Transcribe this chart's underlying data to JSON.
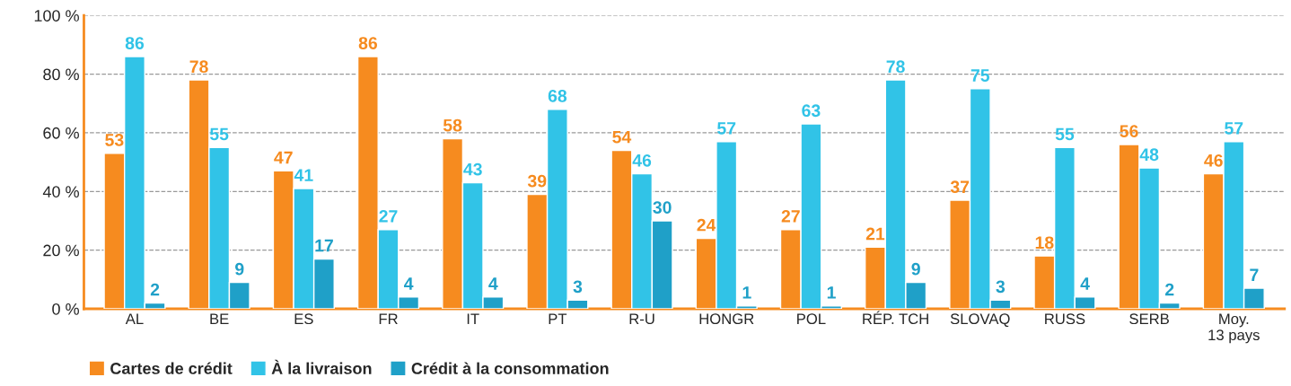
{
  "chart_data": {
    "type": "bar",
    "categories": [
      "AL",
      "BE",
      "ES",
      "FR",
      "IT",
      "PT",
      "R-U",
      "HONGR",
      "POL",
      "RÉP. TCH",
      "SLOVAQ",
      "RUSS",
      "SERB",
      "Moy.\n13 pays"
    ],
    "series": [
      {
        "name": "Cartes de crédit",
        "color": "#f68b1f",
        "values": [
          53,
          78,
          47,
          86,
          58,
          39,
          54,
          24,
          27,
          21,
          37,
          18,
          56,
          46
        ]
      },
      {
        "name": "À la livraison",
        "color": "#31c3e7",
        "values": [
          86,
          55,
          41,
          27,
          43,
          68,
          46,
          57,
          63,
          78,
          75,
          55,
          48,
          57
        ]
      },
      {
        "name": "Crédit à la consommation",
        "color": "#1fa0c8",
        "values": [
          2,
          9,
          17,
          4,
          4,
          3,
          30,
          1,
          1,
          9,
          3,
          4,
          2,
          7
        ]
      }
    ],
    "ylim": [
      0,
      100
    ],
    "yticks": [
      {
        "value": 0,
        "label": "0 %"
      },
      {
        "value": 20,
        "label": "20 %"
      },
      {
        "value": 40,
        "label": "40 %"
      },
      {
        "value": 60,
        "label": "60 %"
      },
      {
        "value": 80,
        "label": "80 %"
      },
      {
        "value": 100,
        "label": "100 %"
      }
    ],
    "grid": "y",
    "legend": "bottom left",
    "data_labels": true
  }
}
